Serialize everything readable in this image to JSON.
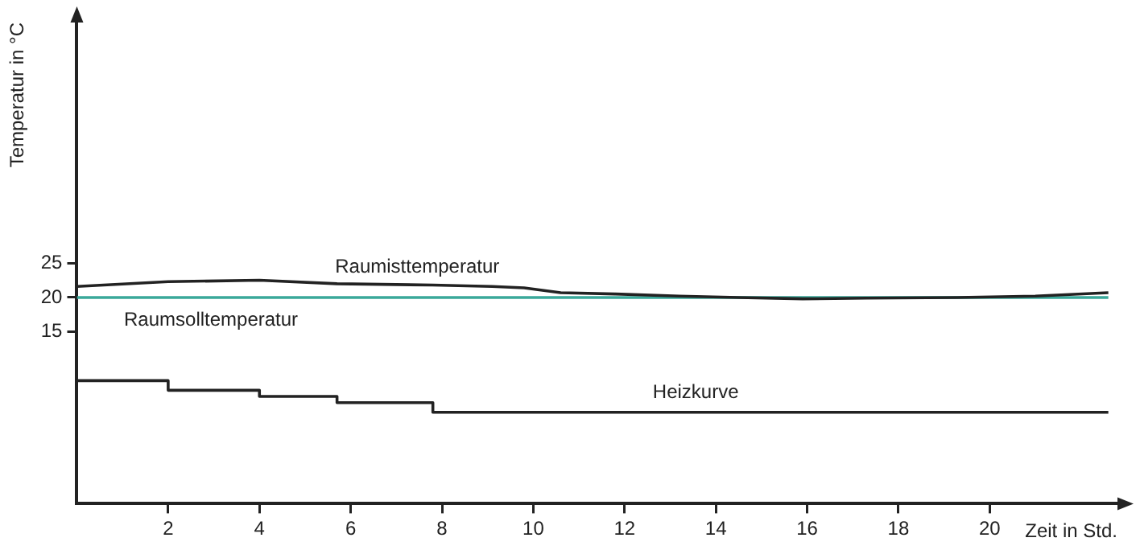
{
  "chart_data": {
    "type": "line",
    "xlabel": "Zeit in Std.",
    "ylabel": "Temperatur in °C",
    "xlim": [
      0,
      22.8
    ],
    "xticks": [
      2,
      4,
      6,
      8,
      10,
      12,
      14,
      16,
      18,
      20
    ],
    "ylim": [
      -10,
      60
    ],
    "yticks": [
      15,
      20,
      25
    ],
    "grid": false,
    "legend": false,
    "marker": "none",
    "line_style": "solid",
    "series": [
      {
        "name": "Raumisttemperatur",
        "color": "#222222",
        "x": [
          0,
          2,
          4,
          5.7,
          7.8,
          9.1,
          9.8,
          10.6,
          11.8,
          13.2,
          14.5,
          15.9,
          17.3,
          19.3,
          21,
          22.6
        ],
        "values": [
          21.6,
          22.3,
          22.5,
          22,
          21.8,
          21.6,
          21.4,
          20.7,
          20.5,
          20.2,
          20,
          19.8,
          19.9,
          20,
          20.2,
          20.7
        ]
      },
      {
        "name": "Raumsolltemperatur",
        "color": "#3aa89a",
        "x": [
          0,
          22.6
        ],
        "values": [
          20,
          20
        ]
      },
      {
        "name": "Heizkurve",
        "type": "step",
        "color": "#222222",
        "x": [
          0,
          2,
          4,
          5.7,
          7.8,
          22.6
        ],
        "values": [
          7.9,
          6.5,
          5.6,
          4.7,
          3.3,
          3.3
        ]
      }
    ]
  }
}
